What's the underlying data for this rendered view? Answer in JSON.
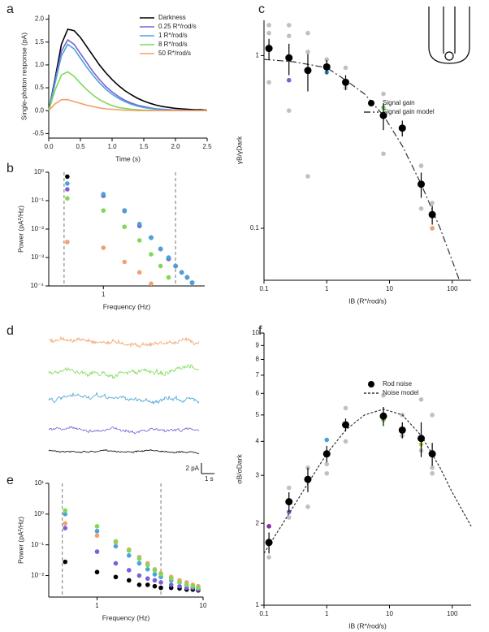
{
  "chart_data": [
    {
      "type": "line",
      "panel": "a",
      "xlabel": "Time (s)",
      "ylabel": "Single-photon response (pA)",
      "xlim": [
        0,
        2.5
      ],
      "ylim": [
        -0.6,
        2.1
      ],
      "xticks": [
        {
          "value": 0,
          "label": "0.0"
        },
        0.5,
        {
          "value": 1,
          "label": "1.0"
        },
        1.5,
        {
          "value": 2,
          "label": "2.0"
        },
        2.5
      ],
      "yticks": [
        -0.5,
        {
          "value": 0,
          "label": "0.0"
        },
        0.5,
        {
          "value": 1,
          "label": "1.0"
        },
        1.5,
        {
          "value": 2,
          "label": "2.0"
        }
      ],
      "legend": "upper right",
      "x": [
        0,
        0.1,
        0.2,
        0.3,
        0.4,
        0.5,
        0.6,
        0.7,
        0.8,
        0.9,
        1.0,
        1.1,
        1.2,
        1.3,
        1.4,
        1.5,
        1.6,
        1.7,
        1.8,
        1.9,
        2.0,
        2.1,
        2.2,
        2.3,
        2.4,
        2.5
      ],
      "series": [
        {
          "name": "Darkness",
          "color": "#000000",
          "values": [
            0,
            0.7,
            1.45,
            1.78,
            1.75,
            1.6,
            1.4,
            1.2,
            1.0,
            0.83,
            0.68,
            0.55,
            0.44,
            0.35,
            0.27,
            0.21,
            0.16,
            0.12,
            0.09,
            0.07,
            0.05,
            0.04,
            0.03,
            0.02,
            0.02,
            0.01
          ]
        },
        {
          "name": "0.25 R*/rod/s",
          "color": "#7b5fd9",
          "values": [
            0,
            0.65,
            1.3,
            1.55,
            1.45,
            1.25,
            1.05,
            0.85,
            0.68,
            0.53,
            0.41,
            0.31,
            0.23,
            0.17,
            0.12,
            0.09,
            0.06,
            0.04,
            0.03,
            0.02,
            0.01,
            0.01,
            0,
            0,
            0,
            0
          ]
        },
        {
          "name": "1 R*/rod/s",
          "color": "#4aa3d8",
          "values": [
            0,
            0.6,
            1.2,
            1.45,
            1.35,
            1.15,
            0.95,
            0.77,
            0.61,
            0.47,
            0.36,
            0.27,
            0.2,
            0.14,
            0.1,
            0.07,
            0.05,
            0.03,
            0.02,
            0.01,
            0.01,
            0,
            0,
            0,
            0,
            0
          ]
        },
        {
          "name": "8 R*/rod/s",
          "color": "#7ed957",
          "values": [
            0,
            0.45,
            0.78,
            0.85,
            0.75,
            0.6,
            0.46,
            0.34,
            0.24,
            0.17,
            0.11,
            0.07,
            0.05,
            0.03,
            0.02,
            0.01,
            0.01,
            0,
            0,
            0,
            0,
            0,
            0,
            0,
            0,
            0
          ]
        },
        {
          "name": "50 R*/rod/s",
          "color": "#f4a06a",
          "values": [
            0,
            0.15,
            0.24,
            0.24,
            0.2,
            0.16,
            0.12,
            0.09,
            0.06,
            0.04,
            0.03,
            0.02,
            0.01,
            0.01,
            0,
            0,
            0,
            0,
            0,
            0,
            0,
            0,
            0,
            0,
            0,
            0
          ]
        }
      ]
    },
    {
      "type": "scatter",
      "panel": "b",
      "xlabel": "Frequency (Hz)",
      "ylabel": "Power (pA²/Hz)",
      "xscale": "log",
      "yscale": "log",
      "xlim": [
        0.35,
        7
      ],
      "ylim": [
        0.0001,
        1
      ],
      "xticks": [
        1
      ],
      "yticks": [
        {
          "value": 0.0001,
          "label": "10⁻⁴"
        },
        {
          "value": 0.001,
          "label": "10⁻³"
        },
        {
          "value": 0.01,
          "label": "10⁻²"
        },
        {
          "value": 0.1,
          "label": "10⁻¹"
        },
        {
          "value": 1,
          "label": "10⁰"
        }
      ],
      "vlines": [
        0.47,
        4
      ],
      "x": [
        0.5,
        1,
        1.5,
        2,
        2.5,
        3,
        3.5,
        4,
        4.5,
        5,
        5.5
      ],
      "series": [
        {
          "color": "#f4a06a",
          "values": [
            0.0035,
            0.0022,
            0.0007,
            0.0003,
            0.00012,
            null,
            null,
            null,
            null,
            null,
            null
          ]
        },
        {
          "color": "#7ed957",
          "values": [
            0.12,
            0.045,
            0.012,
            0.004,
            0.0013,
            0.0005,
            0.0002,
            null,
            null,
            null,
            null
          ]
        },
        {
          "color": "#000000",
          "values": [
            0.7,
            0.15,
            0.045,
            0.013,
            0.005,
            0.002,
            0.0009,
            0.0005,
            0.0003,
            0.0002,
            0.00013
          ]
        },
        {
          "color": "#7b5fd9",
          "values": [
            0.25,
            0.15,
            0.043,
            0.013,
            0.005,
            0.002,
            0.0009,
            0.0005,
            0.0003,
            0.0002,
            0.00013
          ]
        },
        {
          "color": "#4aa3d8",
          "values": [
            0.4,
            0.17,
            0.045,
            0.015,
            0.005,
            0.002,
            0.001,
            0.0005,
            0.0003,
            0.0002,
            0.00013
          ]
        }
      ]
    },
    {
      "type": "scatter",
      "panel": "c",
      "xlabel": "IB (R*/rod/s)",
      "ylabel": "γB/γDark",
      "xscale": "log",
      "yscale": "log",
      "xlim": [
        0.1,
        200
      ],
      "ylim": [
        0.05,
        1.6
      ],
      "xticks": [
        0.1,
        1,
        10,
        100
      ],
      "yticks": [
        0.1,
        1
      ],
      "legend": "upper right",
      "series": [
        {
          "color": "#c0c0c0",
          "x": [
            0.12,
            0.12,
            0.12,
            0.25,
            0.25,
            0.25,
            0.5,
            0.5,
            0.5,
            1,
            2,
            2,
            8,
            8,
            16,
            32,
            32,
            48,
            48
          ],
          "values": [
            1.5,
            0.7,
            1.35,
            1.5,
            1.3,
            0.48,
            1.35,
            0.2,
            1.05,
            0.95,
            0.85,
            0.65,
            0.6,
            0.27,
            0.38,
            0.23,
            0.13,
            0.14,
            0.1
          ]
        },
        {
          "colors": [
            "#7b5fd9",
            "#4aa3d8",
            "#7ed957",
            "#f4a06a"
          ],
          "x": [
            0.25,
            1,
            8,
            48
          ],
          "values": [
            0.72,
            0.8,
            0.5,
            0.1
          ]
        },
        {
          "name": "Signal gain model",
          "color": "#333333",
          "mode": "line",
          "dash": "dashdot",
          "x": [
            0.1,
            0.3,
            1,
            2,
            4,
            8,
            16,
            32,
            64,
            100,
            130
          ],
          "values": [
            0.95,
            0.92,
            0.85,
            0.72,
            0.6,
            0.45,
            0.3,
            0.18,
            0.1,
            0.065,
            0.05
          ]
        },
        {
          "name": "Signal gain",
          "color": "#000000",
          "x": [
            0.12,
            0.25,
            0.5,
            1,
            2,
            8,
            16,
            32,
            48
          ],
          "values": [
            1.1,
            0.97,
            0.82,
            0.86,
            0.7,
            0.45,
            0.38,
            0.18,
            0.12
          ],
          "errors": [
            0.15,
            0.2,
            0.2,
            0.08,
            0.07,
            0.08,
            0.04,
            0.03,
            0.015
          ]
        }
      ]
    },
    {
      "type": "traces",
      "panel": "d",
      "scalebar": [
        "2 pA",
        "1 s"
      ],
      "series": [
        {
          "color": "#000000"
        },
        {
          "color": "#7b5fd9"
        },
        {
          "color": "#4aa3d8"
        },
        {
          "color": "#7ed957"
        },
        {
          "color": "#f4a06a"
        }
      ]
    },
    {
      "type": "scatter",
      "panel": "e",
      "xlabel": "Frequency (Hz)",
      "ylabel": "Power (pA²/Hz)",
      "xscale": "log",
      "yscale": "log",
      "xlim": [
        0.35,
        10
      ],
      "ylim": [
        0.002,
        10
      ],
      "xticks": [
        1,
        10
      ],
      "yticks": [
        {
          "value": 0.01,
          "label": "10⁻²"
        },
        {
          "value": 0.1,
          "label": "10⁻¹"
        },
        {
          "value": 1,
          "label": "10⁰"
        },
        {
          "value": 10,
          "label": "10¹"
        }
      ],
      "vlines": [
        0.47,
        4
      ],
      "x": [
        0.5,
        1,
        1.5,
        2,
        2.5,
        3,
        3.5,
        4,
        5,
        6,
        7,
        8,
        9
      ],
      "series": [
        {
          "color": "#000000",
          "values": [
            0.028,
            0.013,
            0.009,
            0.007,
            0.005,
            0.005,
            0.0045,
            0.004,
            0.004,
            0.0038,
            0.0035,
            0.0035,
            0.0033
          ]
        },
        {
          "color": "#7b5fd9",
          "values": [
            0.35,
            0.06,
            0.025,
            0.015,
            0.01,
            0.008,
            0.007,
            0.006,
            0.005,
            0.0045,
            0.004,
            0.004,
            0.0035
          ]
        },
        {
          "color": "#4aa3d8",
          "values": [
            1.0,
            0.28,
            0.09,
            0.045,
            0.025,
            0.016,
            0.011,
            0.009,
            0.007,
            0.006,
            0.005,
            0.0045,
            0.004
          ]
        },
        {
          "color": "#f4a06a",
          "values": [
            0.5,
            0.2,
            0.12,
            0.07,
            0.04,
            0.025,
            0.016,
            0.012,
            0.009,
            0.007,
            0.006,
            0.005,
            0.0045
          ]
        },
        {
          "color": "#7ed957",
          "values": [
            1.3,
            0.4,
            0.13,
            0.065,
            0.035,
            0.022,
            0.015,
            0.011,
            0.008,
            0.006,
            0.005,
            0.0045,
            0.004
          ]
        }
      ]
    },
    {
      "type": "scatter",
      "panel": "f",
      "xlabel": "IB (R*/rod/s)",
      "ylabel": "σB/σDark",
      "xscale": "log",
      "yscale": "log",
      "xlim": [
        0.1,
        200
      ],
      "ylim": [
        1,
        10
      ],
      "xticks": [
        0.1,
        1,
        10,
        100
      ],
      "yticks": [
        1,
        2,
        3,
        4,
        5,
        6,
        7,
        8,
        9,
        10
      ],
      "legend": "upper right",
      "series": [
        {
          "color": "#c0c0c0",
          "x": [
            0.12,
            0.12,
            0.25,
            0.25,
            0.5,
            0.5,
            1,
            1,
            2,
            2,
            8,
            8,
            16,
            16,
            32,
            32,
            48,
            48,
            48
          ],
          "values": [
            1.5,
            1.95,
            2.7,
            2.1,
            2.3,
            3.2,
            3.3,
            3.05,
            5.3,
            4.0,
            5.9,
            4.8,
            5.0,
            4.2,
            5.7,
            3.7,
            5.0,
            3.2,
            3.05
          ]
        },
        {
          "colors": [
            "#8a2c9e",
            "#7b5fd9",
            "#4aa3d8",
            "#7ed957",
            "#c8d04a"
          ],
          "x": [
            0.12,
            0.25,
            1,
            8,
            32
          ],
          "values": [
            1.95,
            2.2,
            4.05,
            4.8,
            3.9
          ]
        },
        {
          "name": "Noise model",
          "color": "#333333",
          "mode": "line",
          "dash": "dotted",
          "x": [
            0.1,
            0.2,
            0.5,
            1,
            2,
            4,
            8,
            16,
            32,
            64,
            100,
            200
          ],
          "values": [
            1.55,
            2.0,
            2.8,
            3.6,
            4.4,
            5.0,
            5.25,
            5.0,
            4.2,
            3.2,
            2.6,
            1.95
          ]
        },
        {
          "name": "Rod noise",
          "color": "#000000",
          "x": [
            0.12,
            0.25,
            0.5,
            1,
            2,
            8,
            16,
            32,
            48
          ],
          "values": [
            1.7,
            2.4,
            2.9,
            3.6,
            4.6,
            4.95,
            4.4,
            4.1,
            3.6
          ],
          "errors": [
            0.15,
            0.2,
            0.3,
            0.25,
            0.25,
            0.4,
            0.3,
            0.6,
            0.35
          ]
        }
      ]
    }
  ]
}
